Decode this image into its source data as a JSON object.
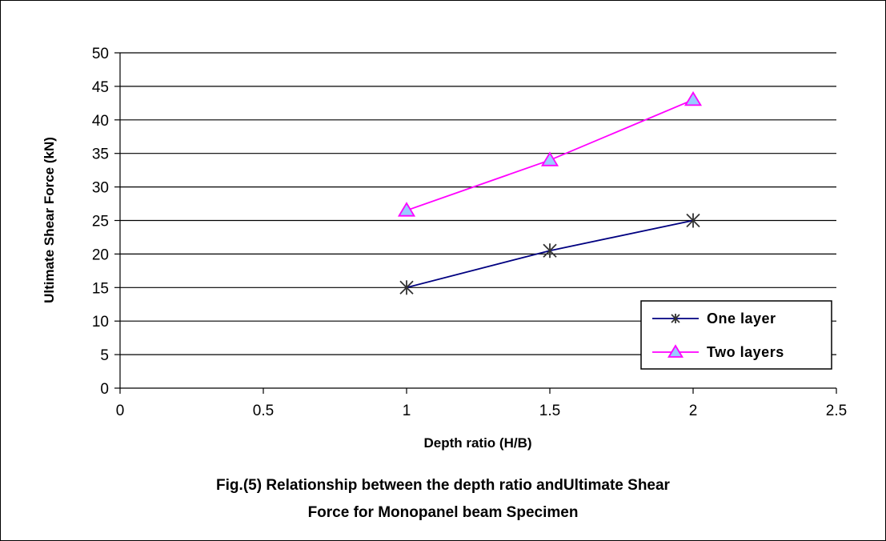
{
  "chart_data": {
    "type": "line",
    "xlabel": "Depth ratio (H/B)",
    "ylabel": "Ultimate Shear Force (kN)",
    "xlim": [
      0,
      2.5
    ],
    "ylim": [
      0,
      50
    ],
    "x_ticks": [
      "0",
      "0.5",
      "1",
      "1.5",
      "2",
      "2.5"
    ],
    "y_ticks": [
      "0",
      "5",
      "10",
      "15",
      "20",
      "25",
      "30",
      "35",
      "40",
      "45",
      "50"
    ],
    "grid": "horizontal",
    "legend_position": "bottom-right",
    "series": [
      {
        "name": "One layer",
        "x": [
          1,
          1.5,
          2
        ],
        "y": [
          15,
          20.5,
          25
        ],
        "color": "#000080",
        "marker": "asterisk"
      },
      {
        "name": "Two layers",
        "x": [
          1,
          1.5,
          2
        ],
        "y": [
          26.5,
          34,
          43
        ],
        "color": "#ff00ff",
        "marker": "triangle",
        "marker_fill": "#99ccff"
      }
    ]
  },
  "caption": {
    "line1": "Fig.(5) Relationship between the depth ratio andUltimate Shear",
    "line2": "Force for Monopanel beam Specimen"
  }
}
